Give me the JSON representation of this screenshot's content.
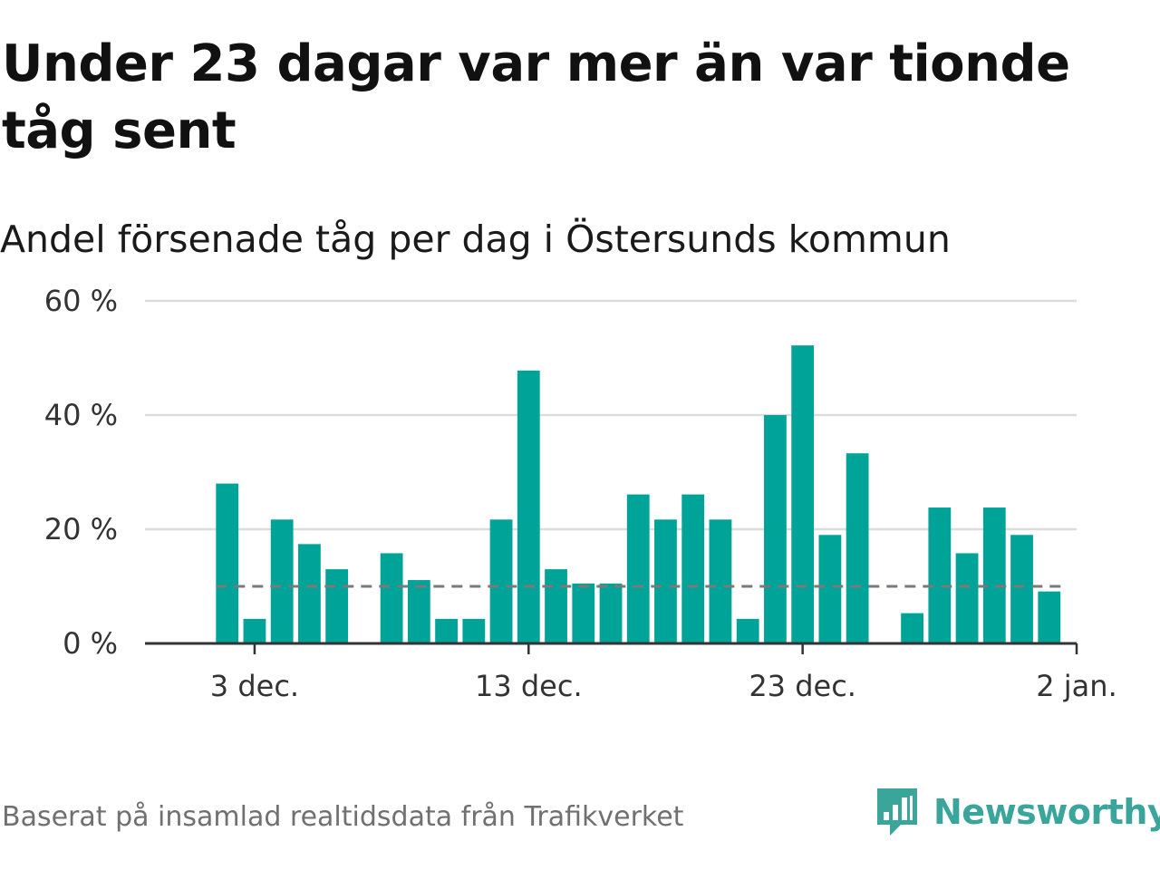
{
  "title": "Under 23 dagar var mer än var tionde tåg sent",
  "subtitle": "Andel försenade tåg per dag i Östersunds kommun",
  "source": "Baserat på insamlad realtidsdata från Trafikverket",
  "brand": {
    "name": "Newsworthy",
    "icon": "newsworthy-logo-icon",
    "color": "#3aa59a"
  },
  "colors": {
    "bar": "#00a398",
    "reference_line": "#7a7a7a",
    "grid": "#dcdcdc",
    "axis": "#333333"
  },
  "chart_data": {
    "type": "bar",
    "x_unit": "day",
    "x_range": [
      "2023-11-29",
      "2024-01-02"
    ],
    "x": [
      "2023-12-02",
      "2023-12-03",
      "2023-12-04",
      "2023-12-05",
      "2023-12-06",
      "2023-12-07",
      "2023-12-08",
      "2023-12-09",
      "2023-12-10",
      "2023-12-11",
      "2023-12-12",
      "2023-12-13",
      "2023-12-14",
      "2023-12-15",
      "2023-12-16",
      "2023-12-17",
      "2023-12-18",
      "2023-12-19",
      "2023-12-20",
      "2023-12-21",
      "2023-12-22",
      "2023-12-23",
      "2023-12-24",
      "2023-12-25",
      "2023-12-26",
      "2023-12-27",
      "2023-12-28",
      "2023-12-29",
      "2023-12-30",
      "2023-12-31",
      "2024-01-01"
    ],
    "values": [
      28,
      4.3,
      21.7,
      17.4,
      13,
      null,
      15.8,
      11.1,
      4.3,
      4.3,
      21.7,
      47.8,
      13,
      10.5,
      10.5,
      26.1,
      21.7,
      26.1,
      21.7,
      4.3,
      40,
      52.2,
      19,
      33.3,
      null,
      5.3,
      23.8,
      15.8,
      23.8,
      19,
      9.1
    ],
    "reference_line": 10,
    "ylim": [
      0,
      60
    ],
    "yticks": [
      0,
      20,
      40,
      60
    ],
    "ytick_labels": [
      "0 %",
      "20 %",
      "40 %",
      "60 %"
    ],
    "xticks": [
      "2023-12-03",
      "2023-12-13",
      "2023-12-23",
      "2024-01-02"
    ],
    "xtick_labels": [
      "3 dec.",
      "13 dec.",
      "23 dec.",
      "2 jan."
    ],
    "grid": true,
    "legend": "none"
  }
}
